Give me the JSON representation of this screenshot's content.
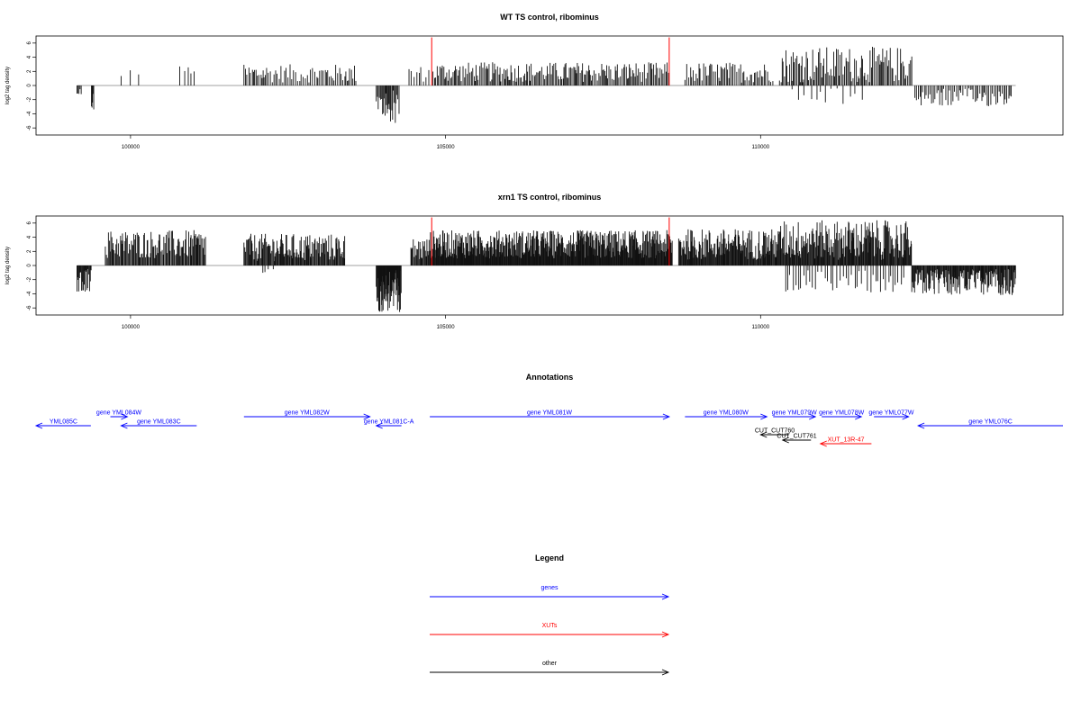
{
  "colors": {
    "genes": "#0000ff",
    "xuts": "#ff0000",
    "other": "#000000",
    "marker": "#ff0000"
  },
  "chart_data": [
    {
      "type": "bar",
      "title": "WT TS control, ribominus",
      "ylabel": "log2 tag density",
      "xlim": [
        98500,
        114800
      ],
      "ylim": [
        -7,
        7
      ],
      "xticks": [
        100000,
        105000,
        110000
      ],
      "yticks": [
        -6,
        -4,
        -2,
        0,
        2,
        4,
        6
      ],
      "markers_x": [
        104780,
        108550
      ],
      "regions": [
        {
          "start": 99150,
          "end": 99230,
          "min": -1.6,
          "max": -0.3,
          "step": 14
        },
        {
          "start": 99380,
          "end": 99420,
          "min": -3.8,
          "max": -0.5,
          "step": 10
        },
        {
          "start": 99850,
          "end": 100150,
          "min": 1.2,
          "max": 2.5,
          "step": 150
        },
        {
          "start": 100780,
          "end": 101030,
          "min": 1.5,
          "max": 2.8,
          "step": 60
        },
        {
          "start": 101800,
          "end": 103600,
          "min": 0.4,
          "max": 3.0,
          "step": 26
        },
        {
          "start": 103900,
          "end": 104280,
          "min": -5.4,
          "max": -0.5,
          "step": 14
        },
        {
          "start": 104420,
          "end": 104750,
          "min": 0.5,
          "max": 2.8,
          "step": 35
        },
        {
          "start": 104800,
          "end": 108550,
          "min": 0.5,
          "max": 3.3,
          "step": 20
        },
        {
          "start": 108800,
          "end": 110200,
          "min": 0.4,
          "max": 3.3,
          "step": 24
        },
        {
          "start": 110300,
          "end": 112400,
          "min": 0.4,
          "max": 5.5,
          "step": 20
        },
        {
          "start": 110500,
          "end": 111700,
          "min": -2.8,
          "max": -0.4,
          "step": 90
        },
        {
          "start": 112450,
          "end": 114000,
          "min": -3.0,
          "max": -0.4,
          "step": 26
        }
      ]
    },
    {
      "type": "bar",
      "title": "xrn1 TS control, ribominus",
      "ylabel": "log2 tag density",
      "xlim": [
        98500,
        114800
      ],
      "ylim": [
        -7,
        7
      ],
      "xticks": [
        100000,
        105000,
        110000
      ],
      "yticks": [
        -6,
        -4,
        -2,
        0,
        2,
        4,
        6
      ],
      "markers_x": [
        104780,
        108550
      ],
      "regions": [
        {
          "start": 99150,
          "end": 99380,
          "min": -3.8,
          "max": -0.4,
          "step": 10
        },
        {
          "start": 99600,
          "end": 101200,
          "min": 1.0,
          "max": 5.0,
          "step": 14
        },
        {
          "start": 101800,
          "end": 103400,
          "min": 0.6,
          "max": 4.5,
          "step": 12
        },
        {
          "start": 102100,
          "end": 102300,
          "min": -1.5,
          "max": -0.5,
          "step": 60
        },
        {
          "start": 103900,
          "end": 104300,
          "min": -6.7,
          "max": -0.6,
          "step": 6
        },
        {
          "start": 104450,
          "end": 104750,
          "min": 0.5,
          "max": 4.0,
          "step": 12
        },
        {
          "start": 104750,
          "end": 108600,
          "min": 1.0,
          "max": 5.0,
          "step": 8
        },
        {
          "start": 108700,
          "end": 110300,
          "min": 0.8,
          "max": 5.2,
          "step": 10
        },
        {
          "start": 110300,
          "end": 112400,
          "min": 0.8,
          "max": 6.4,
          "step": 10
        },
        {
          "start": 110400,
          "end": 112300,
          "min": -3.8,
          "max": -0.5,
          "step": 45
        },
        {
          "start": 112400,
          "end": 114050,
          "min": -4.2,
          "max": -0.5,
          "step": 10
        }
      ]
    }
  ],
  "annotations": {
    "title": "Annotations",
    "genes": [
      {
        "label": "YML085C",
        "start": 98500,
        "end": 99370,
        "dir": "left",
        "row": 2
      },
      {
        "label": "gene YML084W",
        "start": 99680,
        "end": 99950,
        "dir": "right",
        "row": 1
      },
      {
        "label": "gene YML083C",
        "start": 99850,
        "end": 101050,
        "dir": "left",
        "row": 2
      },
      {
        "label": "gene YML082W",
        "start": 101800,
        "end": 103800,
        "dir": "right",
        "row": 1
      },
      {
        "label": "gene YML081C-A",
        "start": 103900,
        "end": 104300,
        "dir": "left",
        "row": 2
      },
      {
        "label": "gene YML081W",
        "start": 104750,
        "end": 108550,
        "dir": "right",
        "row": 1
      },
      {
        "label": "gene YML080W",
        "start": 108800,
        "end": 110100,
        "dir": "right",
        "row": 1
      },
      {
        "label": "gene YML079W",
        "start": 110200,
        "end": 110870,
        "dir": "right",
        "row": 1
      },
      {
        "label": "gene YML078W",
        "start": 110970,
        "end": 111600,
        "dir": "right",
        "row": 1
      },
      {
        "label": "gene YML077W",
        "start": 111800,
        "end": 112350,
        "dir": "right",
        "row": 1
      },
      {
        "label": "gene YML076C",
        "start": 112500,
        "end": 114800,
        "dir": "left",
        "row": 2
      }
    ],
    "others": [
      {
        "label": "CUT_CUT760",
        "start": 110000,
        "end": 110450,
        "dir": "left",
        "row": 3
      },
      {
        "label": "CUT_CUT761",
        "start": 110350,
        "end": 110800,
        "dir": "left",
        "row": 3.6
      }
    ],
    "xuts": [
      {
        "label": "XUT_13R-47",
        "start": 110950,
        "end": 111760,
        "dir": "left",
        "row": 4
      }
    ]
  },
  "legend": {
    "title": "Legend",
    "items": [
      {
        "label": "genes",
        "key": "genes"
      },
      {
        "label": "XUTs",
        "key": "xuts"
      },
      {
        "label": "other",
        "key": "other"
      }
    ]
  }
}
